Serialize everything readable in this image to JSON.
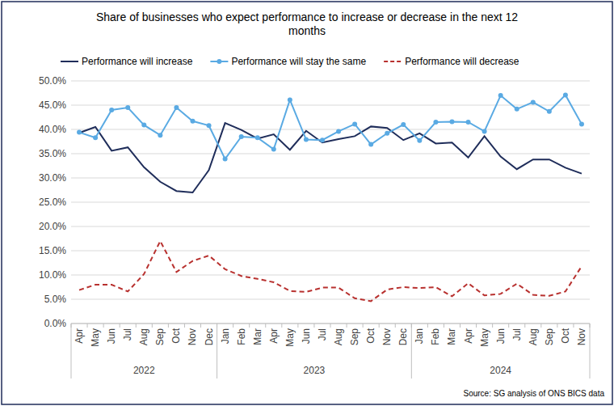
{
  "chart_data": {
    "type": "line",
    "title": "Share of businesses who expect performance to increase or decrease in the next 12 months",
    "annotation": "Source: SG analysis of ONS BICS data",
    "categories": [
      "Apr",
      "May",
      "Jun",
      "Jul",
      "Aug",
      "Sep",
      "Oct",
      "Nov",
      "Dec",
      "Jan",
      "Feb",
      "Mar",
      "Apr",
      "May",
      "Jun",
      "Jul",
      "Aug",
      "Sep",
      "Oct",
      "Nov",
      "Dec",
      "Jan",
      "Feb",
      "Mar",
      "Apr",
      "May",
      "Jun",
      "Jul",
      "Aug",
      "Sep",
      "Oct",
      "Nov"
    ],
    "groups": [
      {
        "label": "2022",
        "size": 9
      },
      {
        "label": "2023",
        "size": 12
      },
      {
        "label": "2024",
        "size": 11
      }
    ],
    "series": [
      {
        "name": "Performance will increase",
        "color": "#1f2d5a",
        "line_style": "solid",
        "marker": "none",
        "values": [
          39.3,
          40.5,
          35.6,
          36.3,
          32.2,
          29.2,
          27.3,
          27.0,
          31.6,
          41.3,
          39.9,
          38.1,
          39.0,
          35.8,
          39.7,
          37.3,
          38.0,
          38.6,
          40.6,
          40.3,
          37.8,
          39.2,
          37.1,
          37.3,
          34.2,
          38.6,
          34.4,
          31.8,
          33.8,
          33.8,
          32.1,
          30.9
        ]
      },
      {
        "name": "Performance will stay the same",
        "color": "#5aaae3",
        "line_style": "solid",
        "marker": "circle",
        "values": [
          39.4,
          38.3,
          44.0,
          44.5,
          40.9,
          38.8,
          44.5,
          41.7,
          40.8,
          33.9,
          38.5,
          38.3,
          35.9,
          46.1,
          37.9,
          37.8,
          39.6,
          41.1,
          36.9,
          39.2,
          41.0,
          37.7,
          41.5,
          41.6,
          41.5,
          39.6,
          47.0,
          44.2,
          45.6,
          43.7,
          47.1,
          41.1
        ]
      },
      {
        "name": "Performance will decrease",
        "color": "#b8312f",
        "line_style": "dashed",
        "marker": "none",
        "values": [
          6.9,
          8.0,
          8.0,
          6.6,
          10.2,
          17.0,
          10.6,
          12.9,
          14.0,
          11.2,
          9.8,
          9.2,
          8.5,
          6.7,
          6.5,
          7.4,
          7.4,
          5.2,
          4.6,
          7.0,
          7.5,
          7.3,
          7.5,
          5.6,
          8.3,
          5.8,
          6.1,
          8.2,
          5.9,
          5.7,
          6.6,
          11.8
        ]
      }
    ],
    "ylim": [
      0,
      50
    ],
    "yticks": [
      {
        "value": 0,
        "label": "0.0%"
      },
      {
        "value": 5,
        "label": "5.0%"
      },
      {
        "value": 10,
        "label": "10.0%"
      },
      {
        "value": 15,
        "label": "15.0%"
      },
      {
        "value": 20,
        "label": "20.0%"
      },
      {
        "value": 25,
        "label": "25.0%"
      },
      {
        "value": 30,
        "label": "30.0%"
      },
      {
        "value": 35,
        "label": "35.0%"
      },
      {
        "value": 40,
        "label": "40.0%"
      },
      {
        "value": 45,
        "label": "45.0%"
      },
      {
        "value": 50,
        "label": "50.0%"
      }
    ],
    "grid": true,
    "legend": "top"
  }
}
